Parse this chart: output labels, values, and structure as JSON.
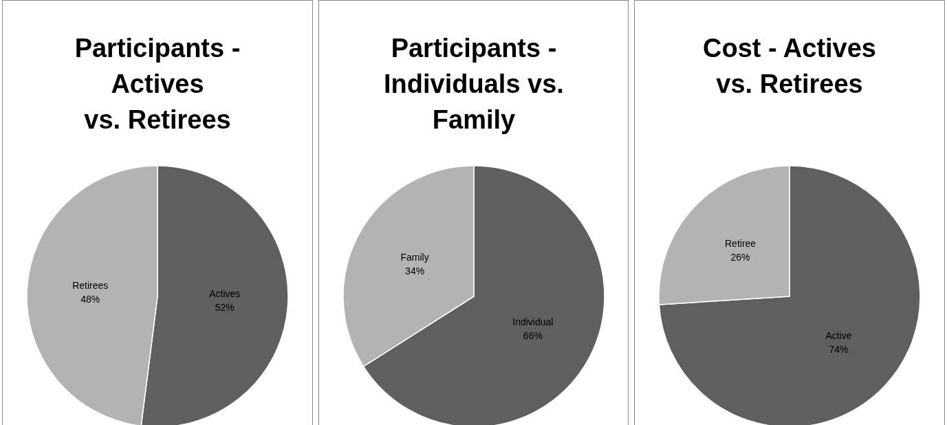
{
  "chart_data": [
    {
      "type": "pie",
      "title": "Participants -\nActives\nvs. Retirees",
      "categories": [
        "Actives",
        "Retirees"
      ],
      "values": [
        52,
        48
      ],
      "value_labels": [
        "52%",
        "48%"
      ],
      "colors": [
        "#5f5f5f",
        "#b3b3b3"
      ],
      "data_labels": true,
      "legend": false
    },
    {
      "type": "pie",
      "title": "Participants -\nIndividuals vs.\nFamily",
      "categories": [
        "Individual",
        "Family"
      ],
      "values": [
        66,
        34
      ],
      "value_labels": [
        "66%",
        "34%"
      ],
      "colors": [
        "#5f5f5f",
        "#b3b3b3"
      ],
      "data_labels": true,
      "legend": false
    },
    {
      "type": "pie",
      "title": "Cost - Actives\nvs. Retirees",
      "categories": [
        "Active",
        "Retiree"
      ],
      "values": [
        74,
        26
      ],
      "value_labels": [
        "74%",
        "26%"
      ],
      "colors": [
        "#5f5f5f",
        "#b3b3b3"
      ],
      "data_labels": true,
      "legend": false
    }
  ]
}
